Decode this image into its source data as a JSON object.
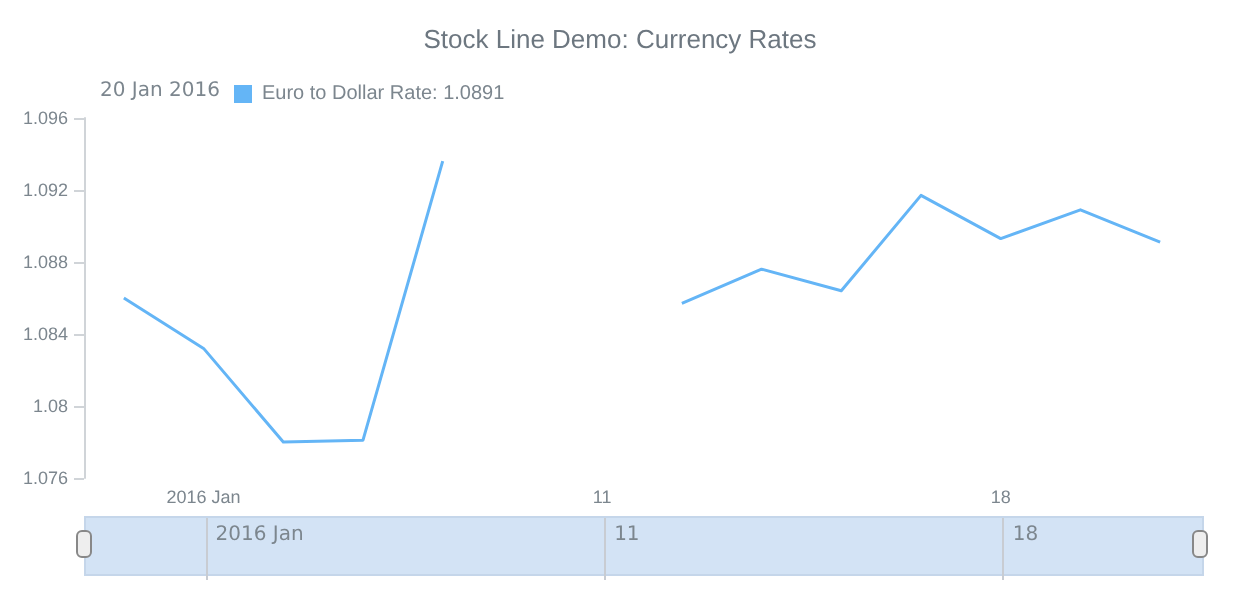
{
  "chart_data": {
    "type": "line",
    "title": "Stock Line Demo: Currency Rates",
    "annotations": [
      "20 Jan 2016"
    ],
    "categories": [
      null,
      "2016 Jan",
      null,
      null,
      null,
      null,
      "11",
      null,
      null,
      null,
      null,
      "18",
      null,
      null
    ],
    "series": [
      {
        "name": "Euro to Dollar Rate: 1.0891",
        "color": "#64b5f6",
        "values": [
          1.086,
          1.0832,
          1.078,
          1.0781,
          1.0936,
          null,
          null,
          1.0857,
          1.0876,
          1.0864,
          1.0917,
          1.0893,
          1.0909,
          1.0891
        ]
      }
    ],
    "ylim": [
      1.076,
      1.096
    ],
    "yticks": [
      1.076,
      1.08,
      1.084,
      1.088,
      1.092,
      1.096
    ],
    "grid": false,
    "legend": "top left",
    "marker": "none",
    "line_style": "solid"
  }
}
